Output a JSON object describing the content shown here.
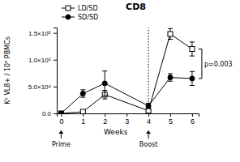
{
  "chart_data": {
    "type": "line",
    "title": "CD8",
    "x_label": "Weeks",
    "y_label": "Kᵇ VL8+ / 10⁶ PBMCs",
    "x": [
      0,
      1,
      2,
      4,
      5,
      6
    ],
    "xlim": [
      -0.2,
      6.3
    ],
    "xticks": [
      0,
      1,
      2,
      3,
      4,
      5,
      6
    ],
    "ylim": [
      0,
      160000
    ],
    "yticks": [
      {
        "value": 0,
        "label": "0.0"
      },
      {
        "value": 50000,
        "label": "5.0×10⁴"
      },
      {
        "value": 100000,
        "label": "1.0×10⁵"
      },
      {
        "value": 150000,
        "label": "1.5×10⁵"
      }
    ],
    "legend": "top-left",
    "series": [
      {
        "name": "LD/SD",
        "color": "#000000",
        "marker": "square-open",
        "values": [
          0,
          3000,
          35000,
          5000,
          148000,
          120000
        ],
        "errors": [
          0,
          2000,
          8000,
          3000,
          10000,
          13000
        ]
      },
      {
        "name": "SD/SD",
        "color": "#000000",
        "marker": "circle",
        "values": [
          0,
          37000,
          56000,
          14000,
          67000,
          65000
        ],
        "errors": [
          0,
          7000,
          23000,
          5000,
          7000,
          13000
        ]
      }
    ],
    "annotations": [
      {
        "text": "Prime",
        "x": 0
      },
      {
        "text": "Boost",
        "x": 4,
        "line_style": "dotted"
      },
      {
        "text": "p=0.003",
        "x": 6
      }
    ]
  }
}
